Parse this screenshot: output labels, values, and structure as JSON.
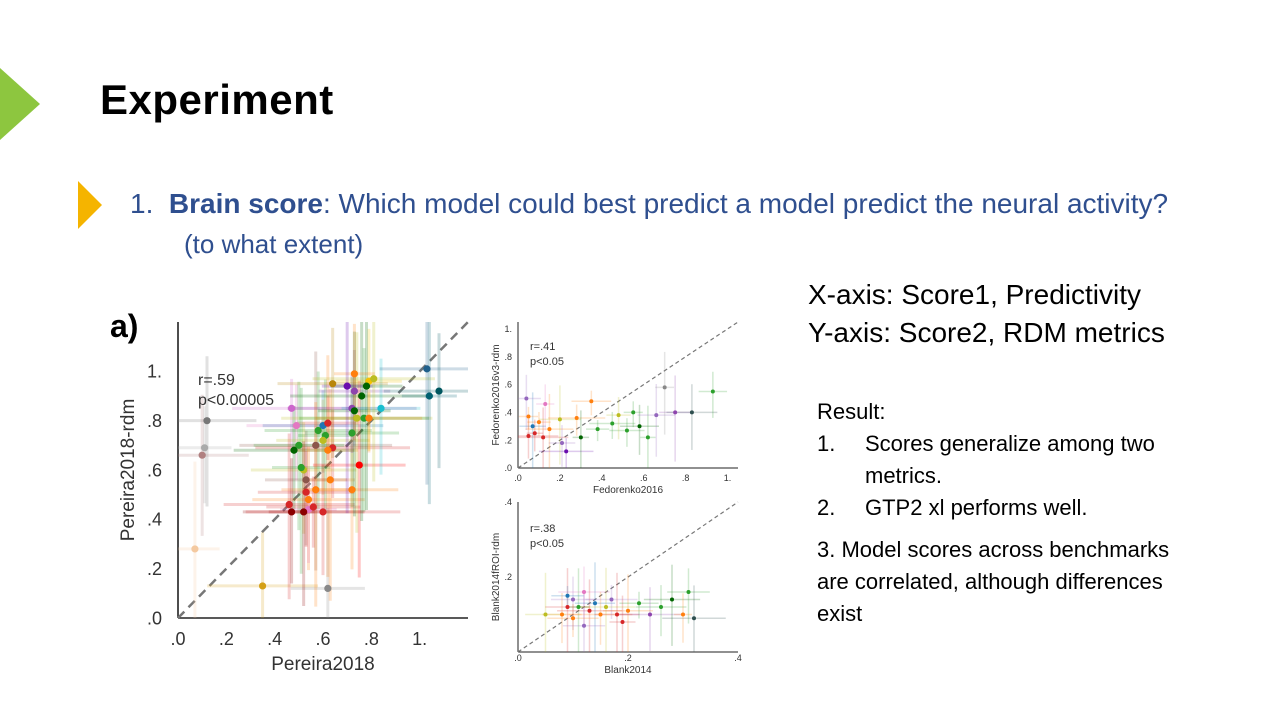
{
  "slide": {
    "title": "Experiment",
    "question_number": "1.",
    "question_bold": "Brain score",
    "question_rest": ": Which model could best predict a model predict the neural activity?",
    "question_line2": "(to what extent)",
    "axis_notes": [
      "X-axis: Score1, Predictivity",
      "Y-axis: Score2, RDM metrics"
    ],
    "result_heading": "Result:",
    "result_items": [
      {
        "num": "1.",
        "line1": "Scores generalize among two",
        "line2": "metrics."
      },
      {
        "num": "2.",
        "line1": "GTP2 xl performs well."
      }
    ],
    "result_item3": [
      "3.  Model scores across benchmarks",
      "are correlated, although differences",
      "exist"
    ],
    "panel_label": "a)"
  },
  "colors": {
    "accent_green": "#8dc63f",
    "accent_yellow": "#f5b400",
    "question_blue": "#2f4f8f"
  },
  "chart_data": [
    {
      "type": "scatter",
      "xlabel": "Pereira2018",
      "ylabel": "Pereira2018-rdm",
      "xlim": [
        0,
        1.2
      ],
      "ylim": [
        0,
        1.2
      ],
      "xticks": [
        ".0",
        ".2",
        ".4",
        ".6",
        ".8",
        "1."
      ],
      "yticks": [
        ".0",
        ".2",
        ".4",
        ".6",
        ".8",
        "1."
      ],
      "annotation": [
        "r=.59",
        "p<0.00005"
      ],
      "diagonal": true,
      "points": [
        {
          "x": 0.12,
          "y": 0.8,
          "c": "#777777"
        },
        {
          "x": 0.11,
          "y": 0.69,
          "c": "#aaaaaa"
        },
        {
          "x": 0.1,
          "y": 0.66,
          "c": "#b08080"
        },
        {
          "x": 0.07,
          "y": 0.28,
          "c": "#f4c9a0"
        },
        {
          "x": 0.35,
          "y": 0.13,
          "c": "#d4a017"
        },
        {
          "x": 0.62,
          "y": 0.12,
          "c": "#888888"
        },
        {
          "x": 0.47,
          "y": 0.85,
          "c": "#cc66cc"
        },
        {
          "x": 0.49,
          "y": 0.78,
          "c": "#e377c2"
        },
        {
          "x": 0.6,
          "y": 0.78,
          "c": "#1f77b4"
        },
        {
          "x": 0.58,
          "y": 0.76,
          "c": "#2ca02c"
        },
        {
          "x": 0.62,
          "y": 0.79,
          "c": "#d62728"
        },
        {
          "x": 0.57,
          "y": 0.7,
          "c": "#8c564b"
        },
        {
          "x": 0.61,
          "y": 0.74,
          "c": "#2ca02c"
        },
        {
          "x": 0.64,
          "y": 0.69,
          "c": "#d62728"
        },
        {
          "x": 0.5,
          "y": 0.7,
          "c": "#2ca02c"
        },
        {
          "x": 0.48,
          "y": 0.68,
          "c": "#006400"
        },
        {
          "x": 0.62,
          "y": 0.68,
          "c": "#ff7f0e"
        },
        {
          "x": 0.6,
          "y": 0.72,
          "c": "#bcbd22"
        },
        {
          "x": 0.52,
          "y": 0.6,
          "c": "#bcbd22"
        },
        {
          "x": 0.51,
          "y": 0.61,
          "c": "#2ca02c"
        },
        {
          "x": 0.53,
          "y": 0.56,
          "c": "#8c564b"
        },
        {
          "x": 0.63,
          "y": 0.56,
          "c": "#ff7f0e"
        },
        {
          "x": 0.57,
          "y": 0.52,
          "c": "#ff7f0e"
        },
        {
          "x": 0.53,
          "y": 0.51,
          "c": "#d62728"
        },
        {
          "x": 0.54,
          "y": 0.48,
          "c": "#ff7f0e"
        },
        {
          "x": 0.46,
          "y": 0.46,
          "c": "#d62728"
        },
        {
          "x": 0.54,
          "y": 0.44,
          "c": "#e377c2"
        },
        {
          "x": 0.56,
          "y": 0.45,
          "c": "#d62728"
        },
        {
          "x": 0.47,
          "y": 0.43,
          "c": "#8b0000"
        },
        {
          "x": 0.52,
          "y": 0.43,
          "c": "#8b0000"
        },
        {
          "x": 0.6,
          "y": 0.43,
          "c": "#d62728"
        },
        {
          "x": 0.72,
          "y": 0.52,
          "c": "#ff7f0e"
        },
        {
          "x": 0.75,
          "y": 0.62,
          "c": "#ff0000"
        },
        {
          "x": 0.72,
          "y": 0.75,
          "c": "#2ca02c"
        },
        {
          "x": 0.73,
          "y": 0.92,
          "c": "#8e44ad"
        },
        {
          "x": 0.72,
          "y": 0.85,
          "c": "#8e44ad"
        },
        {
          "x": 0.73,
          "y": 0.84,
          "c": "#006400"
        },
        {
          "x": 0.76,
          "y": 0.9,
          "c": "#006400"
        },
        {
          "x": 0.74,
          "y": 0.81,
          "c": "#bcbd22"
        },
        {
          "x": 0.77,
          "y": 0.81,
          "c": "#2ca02c"
        },
        {
          "x": 0.79,
          "y": 0.81,
          "c": "#ff7f0e"
        },
        {
          "x": 0.84,
          "y": 0.85,
          "c": "#17becf"
        },
        {
          "x": 0.79,
          "y": 0.96,
          "c": "#f4c200"
        },
        {
          "x": 0.81,
          "y": 0.97,
          "c": "#bcbd22"
        },
        {
          "x": 0.78,
          "y": 0.94,
          "c": "#006400"
        },
        {
          "x": 0.73,
          "y": 0.99,
          "c": "#ff7f0e"
        },
        {
          "x": 0.64,
          "y": 0.95,
          "c": "#b8860b"
        },
        {
          "x": 0.7,
          "y": 0.94,
          "c": "#6a0dad"
        },
        {
          "x": 1.03,
          "y": 1.01,
          "c": "#1f5f8b"
        },
        {
          "x": 1.08,
          "y": 0.92,
          "c": "#00565f"
        },
        {
          "x": 1.04,
          "y": 0.9,
          "c": "#006070"
        }
      ]
    },
    {
      "type": "scatter",
      "xlabel": "Fedorenko2016",
      "ylabel": "Fedorenko2016v3-rdm",
      "xlim": [
        0,
        1.05
      ],
      "ylim": [
        0,
        1.05
      ],
      "xticks": [
        ".0",
        ".2",
        ".4",
        ".6",
        ".8",
        "1."
      ],
      "yticks": [
        ".0",
        ".2",
        ".4",
        ".6",
        ".8",
        "1."
      ],
      "annotation": [
        "r=.41",
        "p<0.05"
      ],
      "diagonal": true,
      "points": [
        {
          "x": 0.05,
          "y": 0.23,
          "c": "#d62728"
        },
        {
          "x": 0.08,
          "y": 0.25,
          "c": "#d62728"
        },
        {
          "x": 0.12,
          "y": 0.22,
          "c": "#d62728"
        },
        {
          "x": 0.15,
          "y": 0.28,
          "c": "#ff7f0e"
        },
        {
          "x": 0.07,
          "y": 0.3,
          "c": "#1f77b4"
        },
        {
          "x": 0.1,
          "y": 0.33,
          "c": "#ff7f0e"
        },
        {
          "x": 0.05,
          "y": 0.37,
          "c": "#ff7f0e"
        },
        {
          "x": 0.2,
          "y": 0.35,
          "c": "#bcbd22"
        },
        {
          "x": 0.28,
          "y": 0.36,
          "c": "#ff7f0e"
        },
        {
          "x": 0.35,
          "y": 0.48,
          "c": "#ff7f0e"
        },
        {
          "x": 0.04,
          "y": 0.5,
          "c": "#9467bd"
        },
        {
          "x": 0.13,
          "y": 0.46,
          "c": "#e377c2"
        },
        {
          "x": 0.21,
          "y": 0.18,
          "c": "#9467bd"
        },
        {
          "x": 0.23,
          "y": 0.12,
          "c": "#6a0dad"
        },
        {
          "x": 0.38,
          "y": 0.28,
          "c": "#2ca02c"
        },
        {
          "x": 0.45,
          "y": 0.32,
          "c": "#2ca02c"
        },
        {
          "x": 0.52,
          "y": 0.27,
          "c": "#2ca02c"
        },
        {
          "x": 0.58,
          "y": 0.3,
          "c": "#006400"
        },
        {
          "x": 0.62,
          "y": 0.22,
          "c": "#2ca02c"
        },
        {
          "x": 0.66,
          "y": 0.38,
          "c": "#9467bd"
        },
        {
          "x": 0.75,
          "y": 0.4,
          "c": "#8e44ad"
        },
        {
          "x": 0.83,
          "y": 0.4,
          "c": "#2f4f4f"
        },
        {
          "x": 0.93,
          "y": 0.55,
          "c": "#2ca02c"
        },
        {
          "x": 0.7,
          "y": 0.58,
          "c": "#888888"
        },
        {
          "x": 0.55,
          "y": 0.4,
          "c": "#2ca02c"
        },
        {
          "x": 0.48,
          "y": 0.38,
          "c": "#bcbd22"
        },
        {
          "x": 0.3,
          "y": 0.22,
          "c": "#006400"
        }
      ]
    },
    {
      "type": "scatter",
      "xlabel": "Blank2014",
      "ylabel": "Blank2014fROI-rdm",
      "xlim": [
        0,
        0.4
      ],
      "ylim": [
        0,
        0.4
      ],
      "xticks": [
        ".0",
        ".2",
        ".4"
      ],
      "yticks": [
        ".2",
        ".4"
      ],
      "annotation": [
        "r=.38",
        "p<0.05"
      ],
      "diagonal": true,
      "points": [
        {
          "x": 0.08,
          "y": 0.1,
          "c": "#ff7f0e"
        },
        {
          "x": 0.09,
          "y": 0.12,
          "c": "#d62728"
        },
        {
          "x": 0.1,
          "y": 0.14,
          "c": "#9467bd"
        },
        {
          "x": 0.11,
          "y": 0.12,
          "c": "#2ca02c"
        },
        {
          "x": 0.12,
          "y": 0.16,
          "c": "#e377c2"
        },
        {
          "x": 0.13,
          "y": 0.11,
          "c": "#d62728"
        },
        {
          "x": 0.14,
          "y": 0.13,
          "c": "#1f77b4"
        },
        {
          "x": 0.15,
          "y": 0.1,
          "c": "#ff7f0e"
        },
        {
          "x": 0.12,
          "y": 0.07,
          "c": "#9467bd"
        },
        {
          "x": 0.16,
          "y": 0.12,
          "c": "#bcbd22"
        },
        {
          "x": 0.18,
          "y": 0.1,
          "c": "#d62728"
        },
        {
          "x": 0.2,
          "y": 0.11,
          "c": "#ff7f0e"
        },
        {
          "x": 0.22,
          "y": 0.13,
          "c": "#2ca02c"
        },
        {
          "x": 0.24,
          "y": 0.1,
          "c": "#8e44ad"
        },
        {
          "x": 0.26,
          "y": 0.12,
          "c": "#2ca02c"
        },
        {
          "x": 0.28,
          "y": 0.14,
          "c": "#006400"
        },
        {
          "x": 0.31,
          "y": 0.16,
          "c": "#2ca02c"
        },
        {
          "x": 0.32,
          "y": 0.09,
          "c": "#2f4f4f"
        },
        {
          "x": 0.3,
          "y": 0.1,
          "c": "#ff7f0e"
        },
        {
          "x": 0.05,
          "y": 0.1,
          "c": "#bcbd22"
        },
        {
          "x": 0.1,
          "y": 0.09,
          "c": "#ff7f0e"
        },
        {
          "x": 0.17,
          "y": 0.14,
          "c": "#9467bd"
        },
        {
          "x": 0.19,
          "y": 0.08,
          "c": "#d62728"
        },
        {
          "x": 0.09,
          "y": 0.15,
          "c": "#1f77b4"
        }
      ]
    }
  ]
}
